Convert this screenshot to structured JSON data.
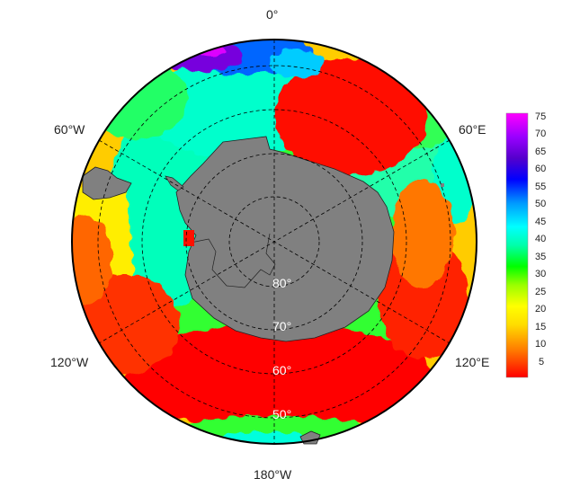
{
  "map": {
    "projection": "south-polar-stereographic",
    "longitude_labels": {
      "top": "0°",
      "upper_left": "60°W",
      "upper_right": "60°E",
      "lower_left": "120°W",
      "lower_right": "120°E",
      "bottom": "180°W"
    },
    "latitude_labels": [
      "80°",
      "70°",
      "60°",
      "50°"
    ],
    "land_color": "#808080",
    "grid_style": "dashed",
    "grid_color": "#000000",
    "boundary_color": "#000000"
  },
  "colorbar": {
    "placement": "right",
    "ticks": [
      "75",
      "70",
      "65",
      "60",
      "55",
      "50",
      "45",
      "40",
      "35",
      "30",
      "25",
      "20",
      "15",
      "10",
      "5"
    ],
    "range": [
      0,
      77
    ],
    "colormap": [
      "#ff0000",
      "#ff6600",
      "#ffcc00",
      "#ffff00",
      "#aaff00",
      "#00ff00",
      "#00ffcc",
      "#00ffff",
      "#0099ff",
      "#0000ff",
      "#6600cc",
      "#9900ff",
      "#ff00ff"
    ]
  }
}
